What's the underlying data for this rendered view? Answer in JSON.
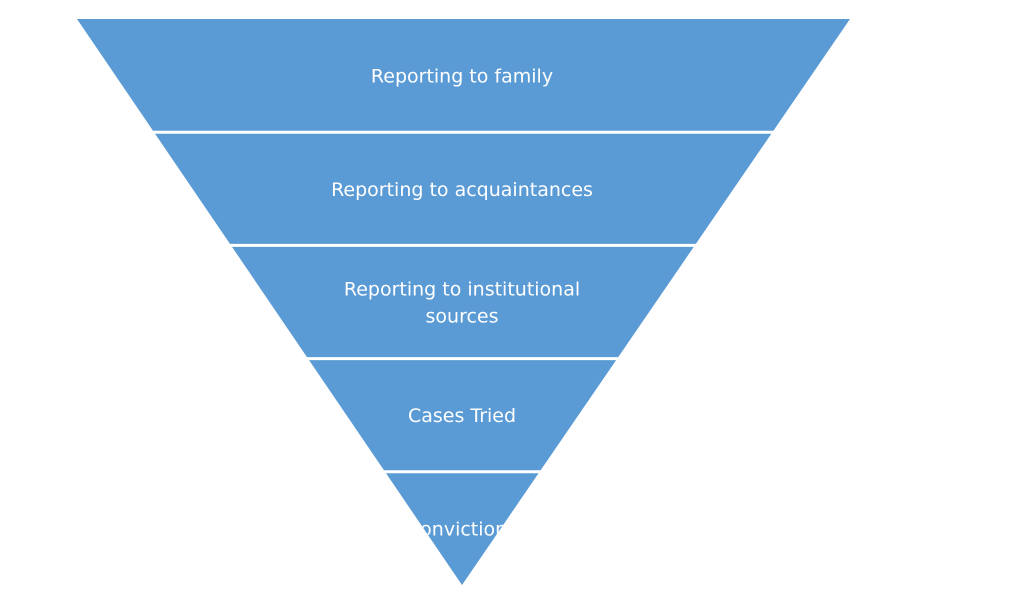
{
  "diagram": {
    "type": "inverted-funnel",
    "fill_color": "#5b9bd5",
    "separator_color": "#ffffff",
    "text_color": "#ffffff",
    "levels": [
      {
        "lines": [
          "Reporting to family"
        ]
      },
      {
        "lines": [
          "Reporting to acquaintances"
        ]
      },
      {
        "lines": [
          "Reporting to institutional",
          "sources"
        ]
      },
      {
        "lines": [
          "Cases Tried"
        ]
      },
      {
        "lines": [
          "Convictions"
        ]
      }
    ]
  }
}
